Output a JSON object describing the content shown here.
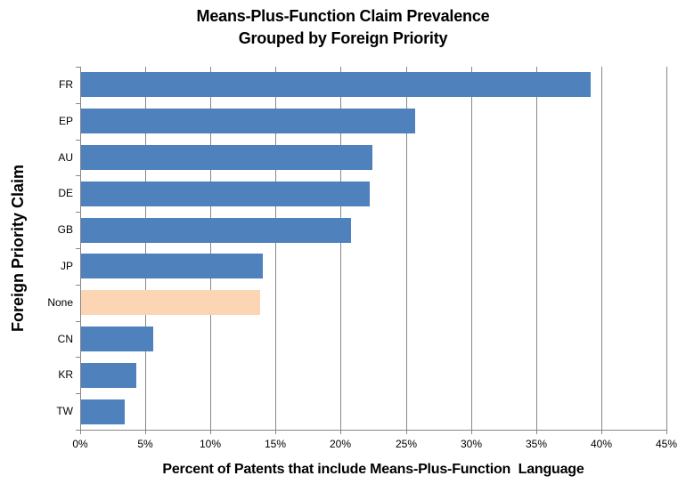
{
  "chart_data": {
    "type": "bar",
    "orientation": "horizontal",
    "title_line1": "Means-Plus-Function Claim Prevalence",
    "title_line2": "Grouped by Foreign Priority",
    "xlabel": "Percent of Patents that include Means-Plus-Function  Language",
    "ylabel": "Foreign Priority Claim",
    "categories": [
      "FR",
      "EP",
      "AU",
      "DE",
      "GB",
      "JP",
      "None",
      "CN",
      "KR",
      "TW"
    ],
    "values": [
      39.2,
      25.7,
      22.4,
      22.2,
      20.8,
      14.0,
      13.8,
      5.6,
      4.3,
      3.4
    ],
    "highlight_category": "None",
    "xlim": [
      0,
      45
    ],
    "x_tick_step": 5,
    "x_tick_labels": [
      "0%",
      "5%",
      "10%",
      "15%",
      "20%",
      "25%",
      "30%",
      "35%",
      "40%",
      "45%"
    ],
    "grid": true,
    "legend": "none",
    "colors": {
      "bar": "#4F81BD",
      "highlight_bar": "#FCD5B4",
      "gridline": "#878787",
      "axis": "#878787",
      "text": "#000000",
      "background": "#FFFFFF"
    }
  }
}
